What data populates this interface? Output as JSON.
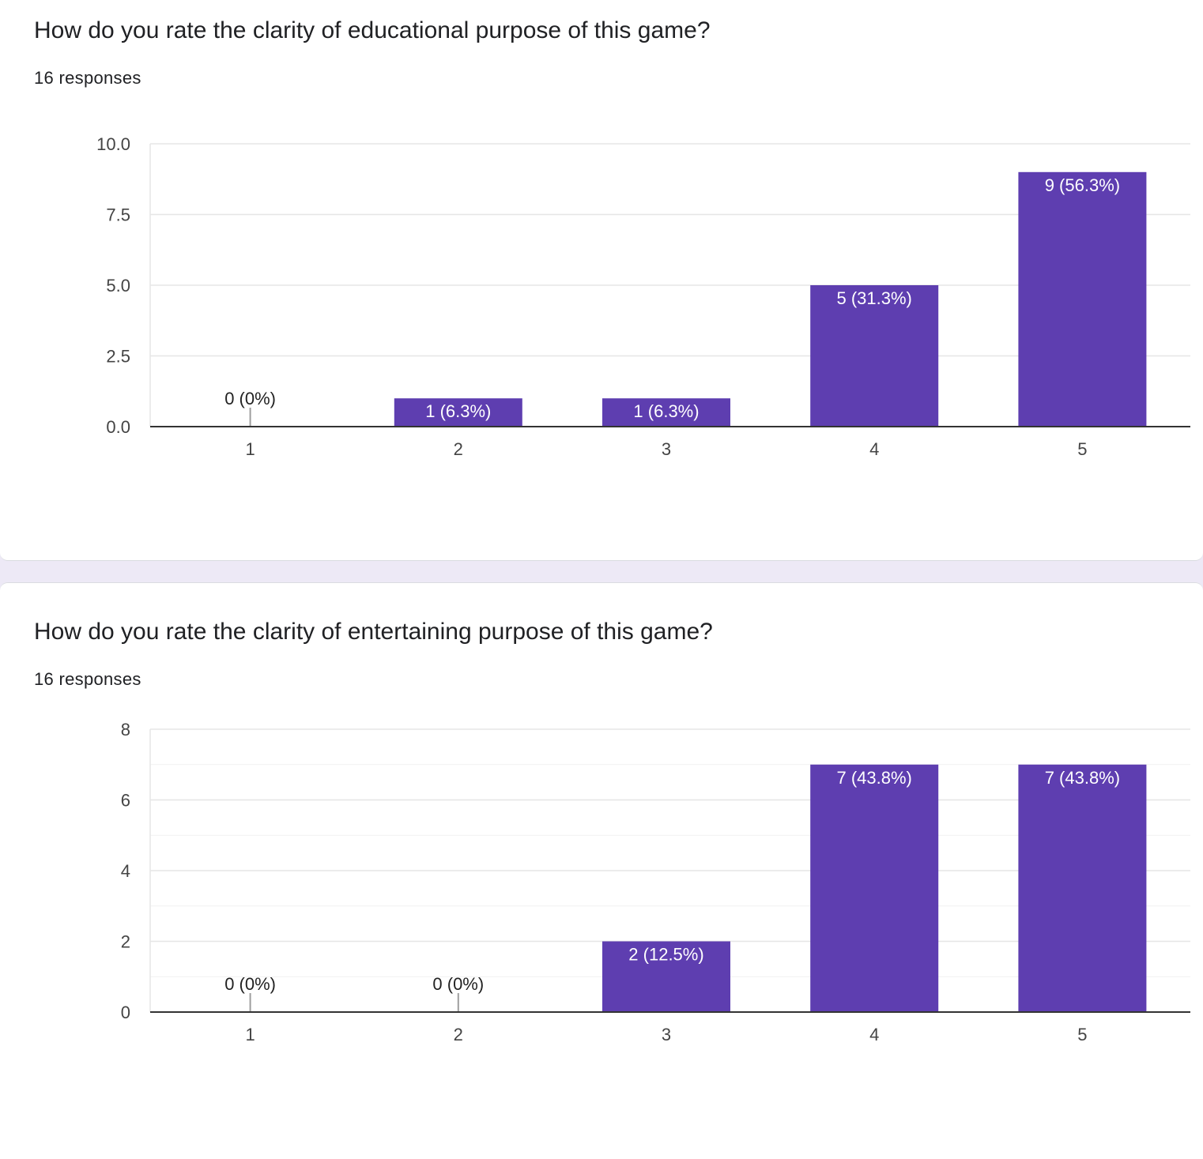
{
  "colors": {
    "bar": "#5e3eb0",
    "grid": "#e6e6e6",
    "minor_grid": "#f1f1f1",
    "axis": "#333333",
    "tick_text": "#444444",
    "inside_label": "#ffffff",
    "outside_label": "#222222"
  },
  "questions": [
    {
      "title": "How do you rate the clarity of educational purpose of this game?",
      "responses": "16 responses"
    },
    {
      "title": "How do you rate the clarity of entertaining purpose of this game?",
      "responses": "16 responses"
    }
  ],
  "chart_data": [
    {
      "type": "bar",
      "title": "How do you rate the clarity of educational purpose of this game?",
      "categories": [
        "1",
        "2",
        "3",
        "4",
        "5"
      ],
      "values": [
        0,
        1,
        1,
        5,
        9
      ],
      "data_labels": [
        "0 (0%)",
        "1 (6.3%)",
        "1 (6.3%)",
        "5 (31.3%)",
        "9 (56.3%)"
      ],
      "ylim": [
        0,
        10
      ],
      "yticks": [
        0,
        2.5,
        5,
        7.5,
        10
      ],
      "ytick_labels": [
        "0.0",
        "2.5",
        "5.0",
        "7.5",
        "10.0"
      ],
      "minor_gridlines": [],
      "xlabel": "",
      "ylabel": "",
      "grid": true
    },
    {
      "type": "bar",
      "title": "How do you rate the clarity of entertaining purpose of this game?",
      "categories": [
        "1",
        "2",
        "3",
        "4",
        "5"
      ],
      "values": [
        0,
        0,
        2,
        7,
        7
      ],
      "data_labels": [
        "0 (0%)",
        "0 (0%)",
        "2 (12.5%)",
        "7 (43.8%)",
        "7 (43.8%)"
      ],
      "ylim": [
        0,
        8
      ],
      "yticks": [
        0,
        2,
        4,
        6,
        8
      ],
      "ytick_labels": [
        "0",
        "2",
        "4",
        "6",
        "8"
      ],
      "minor_gridlines": [
        1,
        3,
        5,
        7
      ],
      "xlabel": "",
      "ylabel": "",
      "grid": true
    }
  ]
}
